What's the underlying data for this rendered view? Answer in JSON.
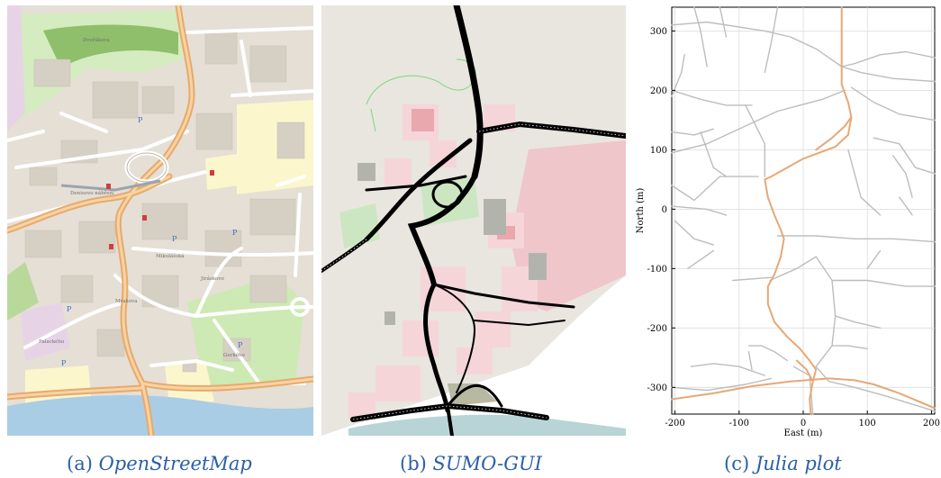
{
  "panels": [
    {
      "label": "(a)",
      "caption": "OpenStreetMap"
    },
    {
      "label": "(b)",
      "caption": "SUMO-GUI"
    },
    {
      "label": "(c)",
      "caption": "Julia plot"
    }
  ],
  "colors": {
    "caption": "#2b5fa6",
    "osm_background": "#f2efe9",
    "osm_road_major": "#f3c38a",
    "osm_road_minor": "#ffffff",
    "osm_park": "#c8e6a8",
    "osm_water": "#a9cde4",
    "sumo_road": "#000000",
    "sumo_building": "#f5d5d8",
    "julia_road": "#bdbdbd",
    "julia_route": "#e6a877"
  },
  "osm_labels": [
    "Dvořákova",
    "Denisovo nábřeží",
    "Mrakova",
    "Mikulášská",
    "Jiráskovo",
    "Palackého",
    "Gorkého"
  ],
  "chart_data": {
    "type": "line",
    "title": "",
    "xlabel": "East (m)",
    "ylabel": "North (m)",
    "xlim": [
      -205,
      205
    ],
    "ylim": [
      -345,
      340
    ],
    "xticks": [
      -200,
      -100,
      0,
      100,
      200
    ],
    "yticks": [
      -300,
      -200,
      -100,
      0,
      100,
      200,
      300
    ],
    "xtick_labels": [
      "-200",
      "-100",
      "0",
      "100",
      "200"
    ],
    "ytick_labels": [
      "-300",
      "-200",
      "-100",
      "0",
      "100",
      "200",
      "300"
    ],
    "grid": true,
    "series": [
      {
        "role": "road network",
        "color": "#bdbdbd",
        "lines": [
          [
            [
              -205,
              310
            ],
            [
              -150,
              315
            ],
            [
              -60,
              300
            ]
          ],
          [
            [
              -170,
              340
            ],
            [
              -160,
              300
            ],
            [
              -150,
              240
            ]
          ],
          [
            [
              -130,
              340
            ],
            [
              -120,
              290
            ]
          ],
          [
            [
              -40,
              340
            ],
            [
              -50,
              280
            ],
            [
              -60,
              230
            ]
          ],
          [
            [
              -205,
              200
            ],
            [
              -160,
              185
            ],
            [
              -120,
              175
            ],
            [
              -80,
              175
            ]
          ],
          [
            [
              -205,
              130
            ],
            [
              -170,
              125
            ],
            [
              -140,
              135
            ]
          ],
          [
            [
              -205,
              95
            ],
            [
              -150,
              110
            ],
            [
              -100,
              135
            ],
            [
              -40,
              165
            ],
            [
              30,
              185
            ],
            [
              65,
              200
            ]
          ],
          [
            [
              -205,
              40
            ],
            [
              -170,
              15
            ],
            [
              -130,
              55
            ],
            [
              -70,
              55
            ]
          ],
          [
            [
              -205,
              5
            ],
            [
              -150,
              0
            ],
            [
              -120,
              -10
            ]
          ],
          [
            [
              -160,
              130
            ],
            [
              -140,
              70
            ],
            [
              -120,
              55
            ]
          ],
          [
            [
              -90,
              175
            ],
            [
              -60,
              110
            ],
            [
              -60,
              55
            ]
          ],
          [
            [
              -60,
              300
            ],
            [
              -20,
              290
            ],
            [
              20,
              270
            ],
            [
              60,
              240
            ],
            [
              80,
              245
            ],
            [
              120,
              260
            ],
            [
              160,
              265
            ],
            [
              205,
              255
            ]
          ],
          [
            [
              60,
              240
            ],
            [
              90,
              230
            ],
            [
              140,
              220
            ],
            [
              205,
              215
            ]
          ],
          [
            [
              75,
              205
            ],
            [
              110,
              180
            ],
            [
              150,
              160
            ],
            [
              205,
              150
            ]
          ],
          [
            [
              110,
              120
            ],
            [
              150,
              110
            ],
            [
              175,
              70
            ],
            [
              205,
              60
            ]
          ],
          [
            [
              140,
              90
            ],
            [
              160,
              60
            ],
            [
              170,
              20
            ]
          ],
          [
            [
              70,
              100
            ],
            [
              90,
              20
            ],
            [
              120,
              -10
            ]
          ],
          [
            [
              -40,
              -45
            ],
            [
              20,
              -45
            ],
            [
              80,
              -50
            ],
            [
              140,
              -50
            ],
            [
              205,
              -55
            ]
          ],
          [
            [
              -200,
              -20
            ],
            [
              -170,
              -50
            ],
            [
              -140,
              -60
            ]
          ],
          [
            [
              -140,
              -70
            ],
            [
              -180,
              -100
            ]
          ],
          [
            [
              -110,
              -120
            ],
            [
              -50,
              -115
            ]
          ],
          [
            [
              -52,
              -120
            ],
            [
              -10,
              -100
            ],
            [
              20,
              -80
            ],
            [
              45,
              -120
            ],
            [
              50,
              -180
            ],
            [
              45,
              -230
            ],
            [
              20,
              -265
            ]
          ],
          [
            [
              45,
              -120
            ],
            [
              100,
              -120
            ],
            [
              160,
              -130
            ],
            [
              205,
              -130
            ]
          ],
          [
            [
              50,
              -180
            ],
            [
              80,
              -190
            ],
            [
              120,
              -200
            ]
          ],
          [
            [
              45,
              -230
            ],
            [
              70,
              -230
            ],
            [
              100,
              -235
            ]
          ],
          [
            [
              -85,
              -230
            ],
            [
              -65,
              -230
            ],
            [
              -45,
              -240
            ],
            [
              -25,
              -255
            ]
          ],
          [
            [
              -85,
              -240
            ],
            [
              -80,
              -270
            ]
          ],
          [
            [
              -175,
              -265
            ],
            [
              -140,
              -260
            ],
            [
              -100,
              -265
            ],
            [
              -60,
              -280
            ]
          ],
          [
            [
              -15,
              -265
            ],
            [
              10,
              -280
            ],
            [
              15,
              -345
            ]
          ],
          [
            [
              20,
              -265
            ],
            [
              40,
              -290
            ],
            [
              80,
              -300
            ],
            [
              130,
              -315
            ],
            [
              205,
              -340
            ]
          ],
          [
            [
              -205,
              -300
            ],
            [
              -150,
              -305
            ],
            [
              -90,
              -295
            ],
            [
              -50,
              -285
            ]
          ],
          [
            [
              100,
              -100
            ],
            [
              120,
              -70
            ]
          ],
          [
            [
              150,
              20
            ],
            [
              170,
              -10
            ]
          ],
          [
            [
              -205,
              190
            ],
            [
              -190,
              230
            ],
            [
              -185,
              260
            ]
          ]
        ]
      },
      {
        "role": "route",
        "color": "#e6a877",
        "lines": [
          [
            [
              60,
              340
            ],
            [
              60,
              280
            ],
            [
              60,
              240
            ],
            [
              60,
              210
            ],
            [
              70,
              180
            ],
            [
              75,
              155
            ],
            [
              70,
              125
            ],
            [
              50,
              105
            ],
            [
              25,
              95
            ],
            [
              0,
              85
            ],
            [
              -25,
              70
            ],
            [
              -50,
              55
            ],
            [
              -60,
              50
            ],
            [
              -55,
              20
            ],
            [
              -45,
              -10
            ],
            [
              -35,
              -35
            ],
            [
              -30,
              -50
            ],
            [
              -35,
              -80
            ],
            [
              -45,
              -110
            ],
            [
              -55,
              -130
            ],
            [
              -55,
              -160
            ],
            [
              -45,
              -190
            ],
            [
              -25,
              -215
            ],
            [
              -5,
              -235
            ],
            [
              10,
              -255
            ],
            [
              20,
              -270
            ],
            [
              15,
              -290
            ],
            [
              10,
              -320
            ],
            [
              12,
              -345
            ]
          ],
          [
            [
              75,
              155
            ],
            [
              65,
              140
            ],
            [
              45,
              120
            ],
            [
              20,
              100
            ]
          ],
          [
            [
              -205,
              -320
            ],
            [
              -140,
              -310
            ],
            [
              -80,
              -298
            ],
            [
              -20,
              -290
            ],
            [
              40,
              -285
            ],
            [
              80,
              -288
            ],
            [
              110,
              -295
            ],
            [
              150,
              -310
            ],
            [
              205,
              -335
            ]
          ],
          [
            [
              15,
              -290
            ],
            [
              5,
              -270
            ],
            [
              -10,
              -255
            ]
          ]
        ]
      }
    ]
  }
}
